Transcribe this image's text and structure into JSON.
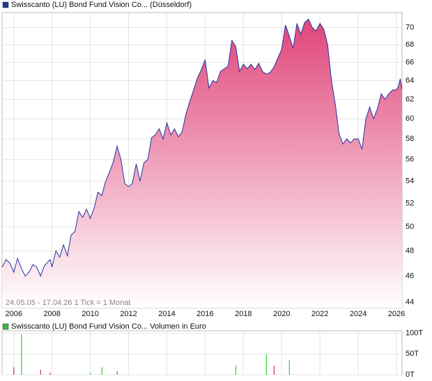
{
  "chart_data": [
    {
      "type": "line",
      "legend": "Swisscanto (LU) Bond Fund Vision Co... (Düsseldorf)",
      "annotation": "24.05.05 - 17.04.26   1 Tick = 1 Monat",
      "legend_color": "#1f3a93",
      "series": [
        {
          "name": "Swisscanto (LU) Bond Fund Vision Co... (Düsseldorf)",
          "color": "#2233a0",
          "x": [
            2005.39,
            2005.6,
            2005.8,
            2006.0,
            2006.2,
            2006.4,
            2006.6,
            2006.8,
            2007.0,
            2007.2,
            2007.4,
            2007.6,
            2007.9,
            2008.0,
            2008.2,
            2008.4,
            2008.6,
            2008.8,
            2009.0,
            2009.2,
            2009.4,
            2009.6,
            2009.8,
            2010.0,
            2010.2,
            2010.4,
            2010.6,
            2010.8,
            2011.0,
            2011.2,
            2011.4,
            2011.6,
            2011.8,
            2012.0,
            2012.2,
            2012.4,
            2012.6,
            2012.8,
            2013.0,
            2013.2,
            2013.4,
            2013.6,
            2013.8,
            2014.0,
            2014.2,
            2014.4,
            2014.6,
            2014.8,
            2015.0,
            2015.2,
            2015.4,
            2015.6,
            2015.8,
            2016.0,
            2016.2,
            2016.4,
            2016.6,
            2016.8,
            2017.0,
            2017.2,
            2017.4,
            2017.6,
            2017.8,
            2018.0,
            2018.2,
            2018.4,
            2018.6,
            2018.8,
            2019.0,
            2019.2,
            2019.4,
            2019.6,
            2019.8,
            2020.0,
            2020.2,
            2020.4,
            2020.6,
            2020.8,
            2021.0,
            2021.2,
            2021.4,
            2021.6,
            2021.8,
            2022.0,
            2022.2,
            2022.4,
            2022.6,
            2022.8,
            2023.0,
            2023.2,
            2023.4,
            2023.6,
            2023.8,
            2024.0,
            2024.2,
            2024.4,
            2024.6,
            2024.8,
            2025.0,
            2025.2,
            2025.4,
            2025.6,
            2025.8,
            2026.0,
            2026.1,
            2026.2,
            2026.29
          ],
          "values": [
            46.7,
            47.3,
            47.0,
            46.3,
            47.4,
            46.6,
            46.0,
            46.3,
            46.9,
            46.7,
            46.0,
            46.8,
            47.3,
            46.7,
            48.0,
            47.5,
            48.5,
            47.6,
            49.3,
            49.6,
            51.3,
            50.8,
            51.5,
            50.7,
            51.6,
            53.0,
            52.7,
            54.0,
            54.8,
            55.8,
            57.3,
            56.0,
            53.8,
            53.5,
            53.8,
            55.6,
            54.0,
            55.7,
            56.0,
            58.1,
            58.4,
            59.0,
            58.0,
            59.6,
            58.4,
            59.0,
            58.2,
            58.7,
            60.5,
            61.8,
            63.0,
            64.3,
            65.2,
            66.3,
            63.2,
            64.0,
            63.8,
            65.0,
            65.3,
            65.6,
            68.5,
            67.8,
            65.0,
            65.8,
            65.3,
            65.8,
            65.2,
            65.9,
            65.0,
            64.7,
            64.9,
            65.5,
            66.5,
            67.5,
            70.3,
            69.0,
            67.6,
            70.5,
            69.2,
            70.6,
            71.0,
            70.0,
            69.6,
            70.5,
            69.8,
            68.0,
            64.0,
            61.5,
            58.5,
            57.5,
            58.0,
            57.6,
            58.0,
            58.0,
            57.0,
            60.0,
            61.2,
            60.0,
            61.0,
            62.6,
            62.0,
            62.6,
            63.0,
            63.0,
            63.4,
            64.2,
            63.1
          ]
        }
      ],
      "xlim": [
        2005.39,
        2026.29
      ],
      "xticks": [
        2006,
        2008,
        2010,
        2012,
        2014,
        2016,
        2018,
        2020,
        2022,
        2024,
        2026
      ],
      "ylim": [
        43.6,
        71.8
      ],
      "yticks": [
        44,
        46,
        48,
        50,
        52,
        54,
        56,
        58,
        60,
        62,
        64,
        66,
        68,
        70
      ],
      "log_scale": true,
      "grid": true
    },
    {
      "type": "bar",
      "legend": "Swisscanto (LU) Bond Fund Vision Co... Volumen in Euro",
      "legend_color": "#3cb44b",
      "x": [
        2006.0,
        2006.4,
        2007.4,
        2007.9,
        2010.0,
        2010.6,
        2011.4,
        2017.6,
        2019.2,
        2019.6,
        2020.4
      ],
      "values": [
        18000,
        98000,
        12000,
        5000,
        5000,
        18000,
        8000,
        22000,
        50000,
        22000,
        35000
      ],
      "colors": [
        "#d03060",
        "#33cc33",
        "#d03060",
        "#d03060",
        "#33cc33",
        "#33cc33",
        "#d03060",
        "#33cc33",
        "#33cc33",
        "#d03060",
        "#33cc33"
      ],
      "xlim": [
        2005.39,
        2026.29
      ],
      "xticks": [
        2006,
        2008,
        2010,
        2012,
        2014,
        2016,
        2018,
        2020,
        2022,
        2024,
        2026
      ],
      "ylim": [
        0,
        106000
      ],
      "yticks": [
        {
          "value": 0,
          "label": "0T"
        },
        {
          "value": 50000,
          "label": "50T"
        },
        {
          "value": 100000,
          "label": "100T"
        }
      ],
      "grid": true
    }
  ]
}
